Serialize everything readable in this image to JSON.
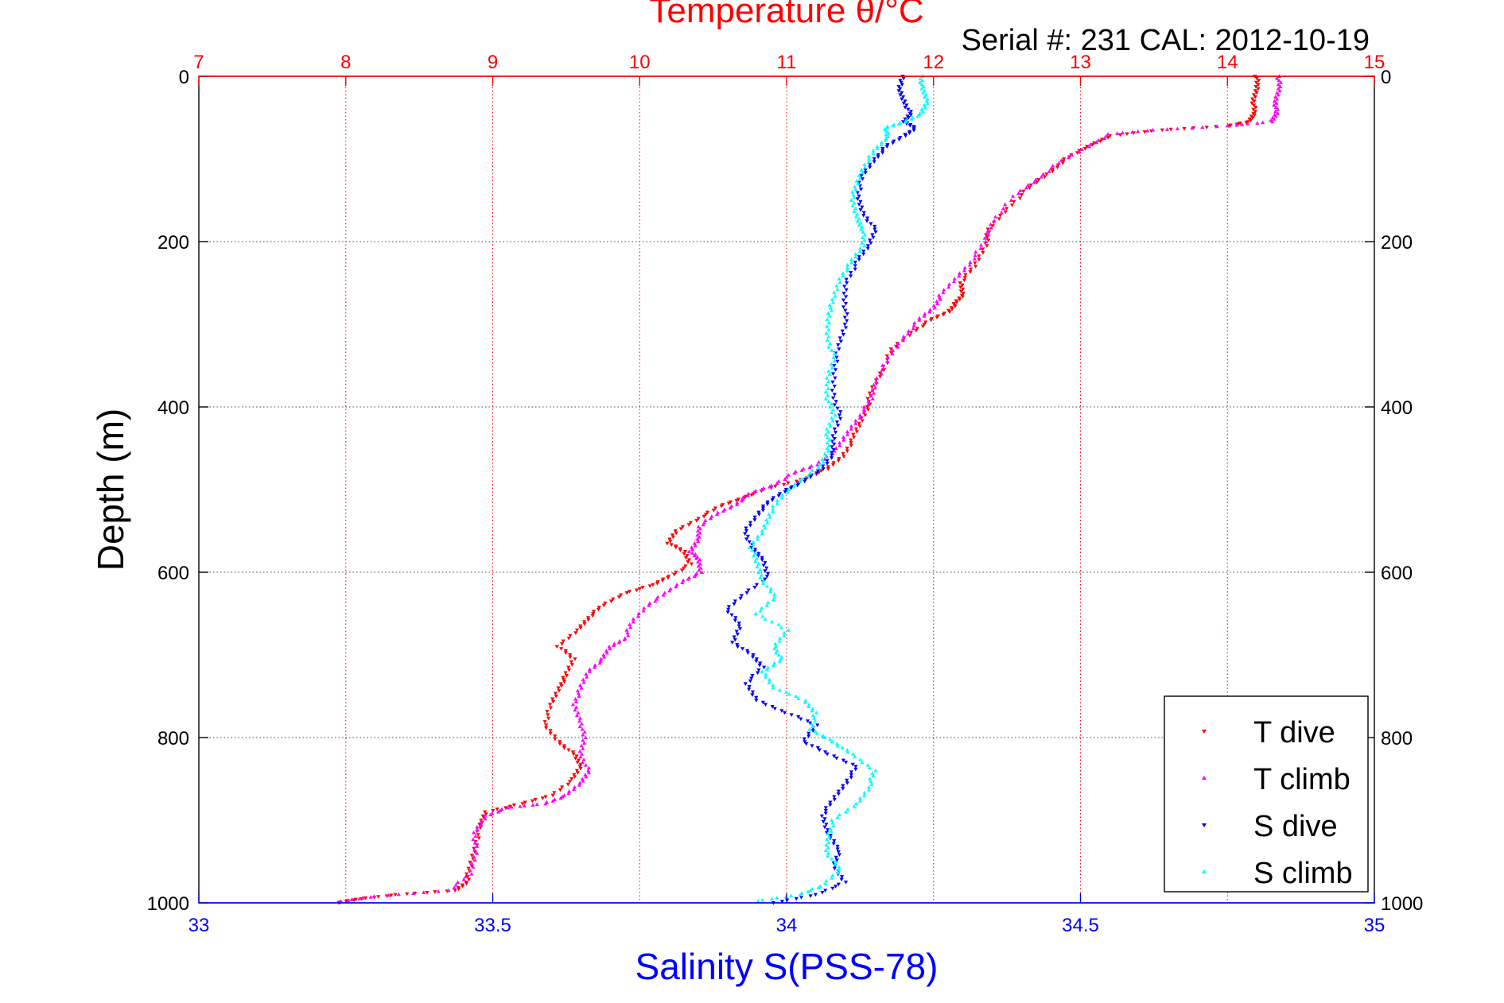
{
  "colors": {
    "temperature_axis": "#ff0000",
    "salinity_axis": "#0000ff",
    "t_dive": "#ff0000",
    "t_climb": "#ff00ff",
    "s_dive": "#0000ff",
    "s_climb": "#00ffff",
    "grid": "#444444",
    "frame": "#000000"
  },
  "chart_data": {
    "type": "scatter",
    "title": "Temperature θ/°C",
    "subtitle": "Serial #: 231  CAL: 2012-10-19",
    "xlabel": "Salinity S(PSS-78)",
    "ylabel": "Depth (m)",
    "x_bottom": {
      "label": "Salinity S(PSS-78)",
      "lim": [
        33,
        35
      ],
      "ticks": [
        33,
        33.5,
        34,
        34.5,
        35
      ],
      "tick_labels": [
        "33",
        "33.5",
        "34",
        "34.5",
        "35"
      ]
    },
    "x_top": {
      "label": "Temperature θ/°C",
      "lim": [
        7,
        15
      ],
      "ticks": [
        7,
        8,
        9,
        10,
        11,
        12,
        13,
        14,
        15
      ],
      "tick_labels": [
        "7",
        "8",
        "9",
        "10",
        "11",
        "12",
        "13",
        "14",
        "15"
      ]
    },
    "y": {
      "lim": [
        0,
        1000
      ],
      "reversed": true,
      "ticks": [
        0,
        200,
        400,
        600,
        800,
        1000
      ],
      "tick_labels": [
        "0",
        "200",
        "400",
        "600",
        "800",
        "1000"
      ]
    },
    "grid": true,
    "legend_position": "bottom-right",
    "series": [
      {
        "name": "T dive",
        "axis": "temperature",
        "marker": "triangle-down",
        "points": [
          [
            14.2,
            0
          ],
          [
            14.2,
            15
          ],
          [
            14.18,
            30
          ],
          [
            14.18,
            45
          ],
          [
            14.15,
            55
          ],
          [
            14.0,
            60
          ],
          [
            13.55,
            65
          ],
          [
            13.2,
            72
          ],
          [
            13.05,
            85
          ],
          [
            12.9,
            100
          ],
          [
            12.8,
            115
          ],
          [
            12.65,
            135
          ],
          [
            12.5,
            160
          ],
          [
            12.38,
            185
          ],
          [
            12.35,
            205
          ],
          [
            12.28,
            230
          ],
          [
            12.18,
            250
          ],
          [
            12.2,
            265
          ],
          [
            12.15,
            275
          ],
          [
            12.1,
            285
          ],
          [
            11.98,
            295
          ],
          [
            11.85,
            310
          ],
          [
            11.72,
            330
          ],
          [
            11.65,
            355
          ],
          [
            11.58,
            380
          ],
          [
            11.55,
            400
          ],
          [
            11.5,
            420
          ],
          [
            11.45,
            440
          ],
          [
            11.38,
            460
          ],
          [
            11.28,
            475
          ],
          [
            11.1,
            488
          ],
          [
            10.85,
            500
          ],
          [
            10.7,
            510
          ],
          [
            10.55,
            520
          ],
          [
            10.4,
            535
          ],
          [
            10.25,
            550
          ],
          [
            10.2,
            565
          ],
          [
            10.3,
            575
          ],
          [
            10.35,
            590
          ],
          [
            10.2,
            605
          ],
          [
            10.1,
            615
          ],
          [
            9.9,
            625
          ],
          [
            9.75,
            640
          ],
          [
            9.65,
            655
          ],
          [
            9.58,
            670
          ],
          [
            9.45,
            690
          ],
          [
            9.55,
            705
          ],
          [
            9.5,
            725
          ],
          [
            9.45,
            740
          ],
          [
            9.4,
            760
          ],
          [
            9.35,
            785
          ],
          [
            9.45,
            805
          ],
          [
            9.55,
            820
          ],
          [
            9.6,
            835
          ],
          [
            9.55,
            850
          ],
          [
            9.4,
            870
          ],
          [
            9.2,
            880
          ],
          [
            8.95,
            890
          ],
          [
            8.92,
            905
          ],
          [
            8.88,
            930
          ],
          [
            8.85,
            955
          ],
          [
            8.82,
            975
          ],
          [
            8.75,
            985
          ],
          [
            8.35,
            990
          ],
          [
            8.1,
            995
          ],
          [
            7.95,
            1000
          ]
        ]
      },
      {
        "name": "T climb",
        "axis": "temperature",
        "marker": "triangle-up",
        "points": [
          [
            14.35,
            0
          ],
          [
            14.35,
            15
          ],
          [
            14.33,
            30
          ],
          [
            14.33,
            45
          ],
          [
            14.3,
            55
          ],
          [
            14.0,
            60
          ],
          [
            13.5,
            65
          ],
          [
            13.2,
            70
          ],
          [
            13.05,
            85
          ],
          [
            12.85,
            105
          ],
          [
            12.7,
            125
          ],
          [
            12.55,
            145
          ],
          [
            12.4,
            175
          ],
          [
            12.35,
            200
          ],
          [
            12.25,
            225
          ],
          [
            12.15,
            245
          ],
          [
            12.05,
            265
          ],
          [
            12.0,
            280
          ],
          [
            11.9,
            295
          ],
          [
            11.8,
            315
          ],
          [
            11.7,
            340
          ],
          [
            11.6,
            370
          ],
          [
            11.58,
            390
          ],
          [
            11.5,
            410
          ],
          [
            11.42,
            430
          ],
          [
            11.35,
            450
          ],
          [
            11.2,
            470
          ],
          [
            11.05,
            480
          ],
          [
            10.9,
            495
          ],
          [
            10.75,
            505
          ],
          [
            10.65,
            518
          ],
          [
            10.52,
            530
          ],
          [
            10.4,
            545
          ],
          [
            10.4,
            560
          ],
          [
            10.35,
            575
          ],
          [
            10.4,
            585
          ],
          [
            10.42,
            600
          ],
          [
            10.3,
            610
          ],
          [
            10.18,
            625
          ],
          [
            10.05,
            640
          ],
          [
            9.95,
            660
          ],
          [
            9.9,
            680
          ],
          [
            9.8,
            690
          ],
          [
            9.75,
            705
          ],
          [
            9.65,
            720
          ],
          [
            9.6,
            740
          ],
          [
            9.55,
            760
          ],
          [
            9.6,
            780
          ],
          [
            9.62,
            800
          ],
          [
            9.6,
            820
          ],
          [
            9.65,
            840
          ],
          [
            9.6,
            855
          ],
          [
            9.5,
            870
          ],
          [
            9.35,
            880
          ],
          [
            9.1,
            885
          ],
          [
            8.95,
            895
          ],
          [
            8.88,
            915
          ],
          [
            8.88,
            940
          ],
          [
            8.85,
            965
          ],
          [
            8.7,
            985
          ],
          [
            8.2,
            992
          ],
          [
            7.98,
            998
          ]
        ]
      },
      {
        "name": "S dive",
        "axis": "salinity",
        "marker": "triangle-down",
        "points": [
          [
            34.2,
            0
          ],
          [
            34.19,
            15
          ],
          [
            34.2,
            30
          ],
          [
            34.21,
            45
          ],
          [
            34.2,
            55
          ],
          [
            34.22,
            62
          ],
          [
            34.2,
            72
          ],
          [
            34.17,
            85
          ],
          [
            34.15,
            100
          ],
          [
            34.13,
            120
          ],
          [
            34.12,
            145
          ],
          [
            34.13,
            165
          ],
          [
            34.15,
            185
          ],
          [
            34.14,
            205
          ],
          [
            34.12,
            225
          ],
          [
            34.1,
            250
          ],
          [
            34.1,
            275
          ],
          [
            34.1,
            300
          ],
          [
            34.09,
            325
          ],
          [
            34.08,
            355
          ],
          [
            34.08,
            385
          ],
          [
            34.09,
            410
          ],
          [
            34.08,
            435
          ],
          [
            34.08,
            455
          ],
          [
            34.06,
            475
          ],
          [
            34.03,
            490
          ],
          [
            34.0,
            500
          ],
          [
            33.97,
            515
          ],
          [
            33.95,
            530
          ],
          [
            33.93,
            550
          ],
          [
            33.94,
            570
          ],
          [
            33.96,
            585
          ],
          [
            33.97,
            605
          ],
          [
            33.93,
            625
          ],
          [
            33.9,
            645
          ],
          [
            33.92,
            665
          ],
          [
            33.91,
            685
          ],
          [
            33.94,
            700
          ],
          [
            33.96,
            715
          ],
          [
            33.93,
            735
          ],
          [
            33.95,
            755
          ],
          [
            34.0,
            770
          ],
          [
            34.05,
            785
          ],
          [
            34.03,
            805
          ],
          [
            34.07,
            820
          ],
          [
            34.12,
            835
          ],
          [
            34.1,
            855
          ],
          [
            34.08,
            875
          ],
          [
            34.06,
            895
          ],
          [
            34.07,
            915
          ],
          [
            34.09,
            935
          ],
          [
            34.08,
            955
          ],
          [
            34.1,
            975
          ],
          [
            34.05,
            990
          ],
          [
            33.98,
            1000
          ]
        ]
      },
      {
        "name": "S climb",
        "axis": "salinity",
        "marker": "triangle-up",
        "points": [
          [
            34.23,
            0
          ],
          [
            34.23,
            15
          ],
          [
            34.24,
            30
          ],
          [
            34.23,
            45
          ],
          [
            34.2,
            55
          ],
          [
            34.17,
            62
          ],
          [
            34.17,
            75
          ],
          [
            34.15,
            90
          ],
          [
            34.13,
            110
          ],
          [
            34.12,
            130
          ],
          [
            34.11,
            150
          ],
          [
            34.12,
            170
          ],
          [
            34.13,
            185
          ],
          [
            34.13,
            205
          ],
          [
            34.11,
            225
          ],
          [
            34.09,
            245
          ],
          [
            34.08,
            270
          ],
          [
            34.07,
            290
          ],
          [
            34.07,
            315
          ],
          [
            34.08,
            340
          ],
          [
            34.07,
            365
          ],
          [
            34.07,
            390
          ],
          [
            34.08,
            410
          ],
          [
            34.07,
            430
          ],
          [
            34.07,
            450
          ],
          [
            34.06,
            470
          ],
          [
            34.02,
            490
          ],
          [
            33.99,
            510
          ],
          [
            33.97,
            530
          ],
          [
            33.96,
            550
          ],
          [
            33.94,
            570
          ],
          [
            33.95,
            590
          ],
          [
            33.96,
            610
          ],
          [
            33.98,
            630
          ],
          [
            33.95,
            650
          ],
          [
            34.0,
            670
          ],
          [
            33.98,
            690
          ],
          [
            33.99,
            705
          ],
          [
            33.96,
            720
          ],
          [
            33.98,
            740
          ],
          [
            34.03,
            755
          ],
          [
            34.05,
            770
          ],
          [
            34.04,
            790
          ],
          [
            34.08,
            805
          ],
          [
            34.11,
            820
          ],
          [
            34.15,
            840
          ],
          [
            34.14,
            860
          ],
          [
            34.12,
            880
          ],
          [
            34.08,
            900
          ],
          [
            34.07,
            920
          ],
          [
            34.07,
            940
          ],
          [
            34.09,
            960
          ],
          [
            34.06,
            980
          ],
          [
            34.02,
            990
          ],
          [
            33.95,
            998
          ]
        ]
      }
    ]
  }
}
